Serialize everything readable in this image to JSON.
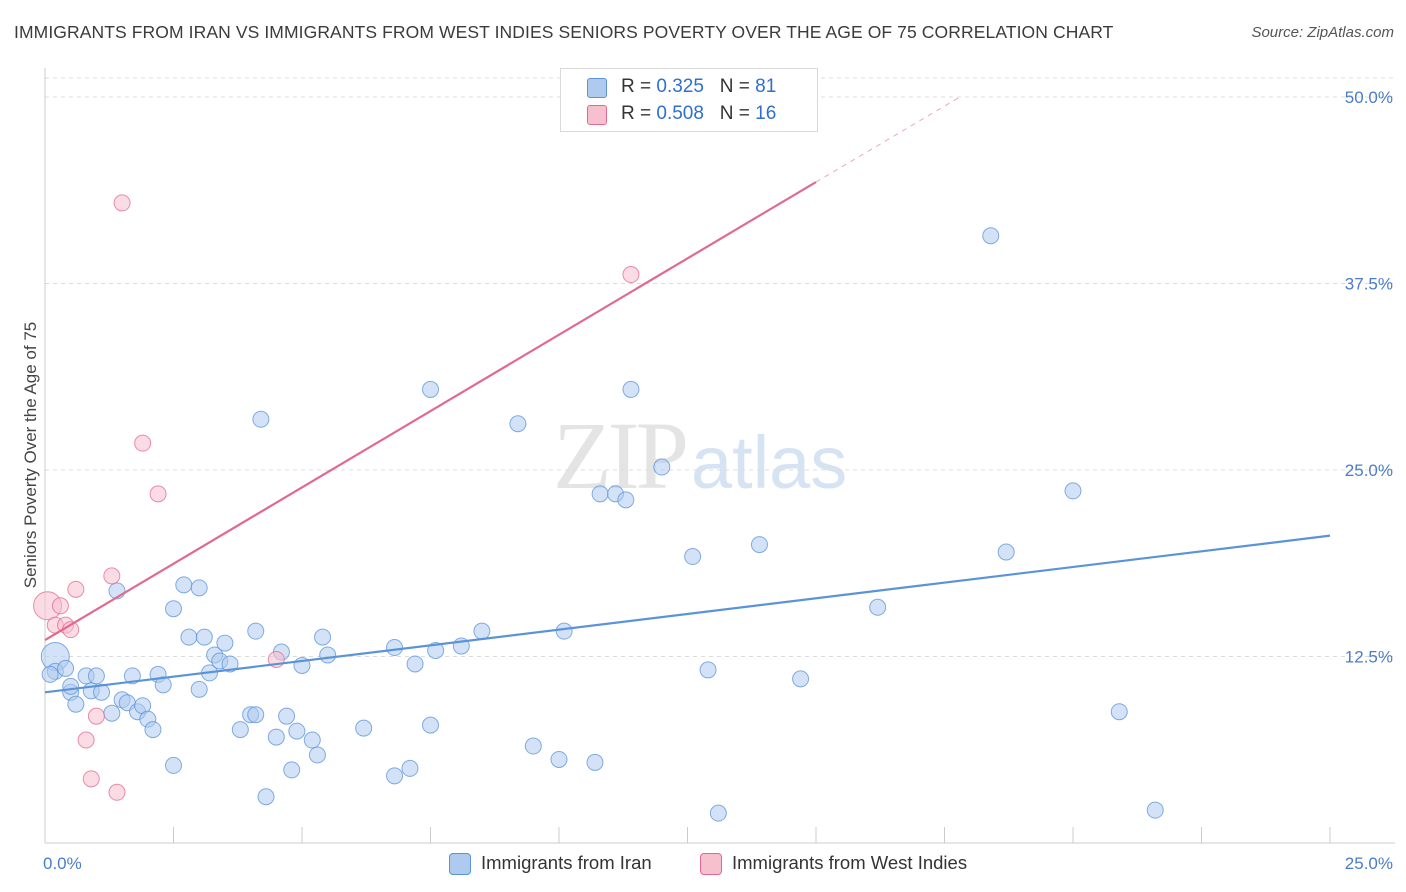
{
  "title": "IMMIGRANTS FROM IRAN VS IMMIGRANTS FROM WEST INDIES SENIORS POVERTY OVER THE AGE OF 75 CORRELATION CHART",
  "source": "Source: ZipAtlas.com",
  "watermark": {
    "zip": "ZIP",
    "atlas": "atlas"
  },
  "legend": {
    "rows": [
      {
        "r_label": "R =",
        "r_value": "0.325",
        "n_label": "N =",
        "n_value": "81",
        "color": "#aecbef"
      },
      {
        "r_label": "R =",
        "r_value": "0.508",
        "n_label": "N =",
        "n_value": "16",
        "color": "#f7c0cf"
      }
    ]
  },
  "bottom_legend": [
    {
      "label": "Immigrants from Iran",
      "color": "#aecbef"
    },
    {
      "label": "Immigrants from West Indies",
      "color": "#f7c0cf"
    }
  ],
  "chart_data": {
    "type": "scatter",
    "title": "IMMIGRANTS FROM IRAN VS IMMIGRANTS FROM WEST INDIES SENIORS POVERTY OVER THE AGE OF 75 CORRELATION CHART",
    "xlabel": "",
    "ylabel": "Seniors Poverty Over the Age of 75",
    "xlim": [
      0,
      25
    ],
    "ylim": [
      0,
      50
    ],
    "x_tick_labels": [
      "0.0%",
      "25.0%"
    ],
    "y_tick_values": [
      12.5,
      25.0,
      37.5,
      50.0
    ],
    "y_tick_labels": [
      "12.5%",
      "25.0%",
      "37.5%",
      "50.0%"
    ],
    "grid": true,
    "series": [
      {
        "name": "Immigrants from Iran",
        "color": "#5b93d9",
        "fill": "#aecbef",
        "trend": {
          "x0": 0,
          "y0": 10.1,
          "x1": 25,
          "y1": 20.6,
          "dashed_to": null
        },
        "points": [
          [
            0.2,
            12.5
          ],
          [
            0.2,
            11.5
          ],
          [
            0.4,
            11.7
          ],
          [
            0.5,
            10.1
          ],
          [
            0.5,
            10.5
          ],
          [
            0.6,
            9.3
          ],
          [
            0.8,
            11.2
          ],
          [
            0.9,
            10.2
          ],
          [
            1.0,
            11.2
          ],
          [
            1.1,
            10.1
          ],
          [
            1.3,
            8.7
          ],
          [
            1.4,
            16.9
          ],
          [
            1.5,
            9.6
          ],
          [
            1.6,
            9.4
          ],
          [
            1.7,
            11.2
          ],
          [
            1.8,
            8.8
          ],
          [
            1.9,
            9.2
          ],
          [
            2.0,
            8.3
          ],
          [
            2.1,
            7.6
          ],
          [
            2.2,
            11.3
          ],
          [
            2.3,
            10.6
          ],
          [
            2.5,
            15.7
          ],
          [
            2.5,
            5.2
          ],
          [
            2.7,
            17.3
          ],
          [
            2.8,
            13.8
          ],
          [
            3.0,
            17.1
          ],
          [
            3.0,
            10.3
          ],
          [
            3.1,
            13.8
          ],
          [
            3.2,
            11.4
          ],
          [
            3.3,
            12.6
          ],
          [
            3.4,
            12.2
          ],
          [
            3.5,
            13.4
          ],
          [
            3.6,
            12.0
          ],
          [
            3.8,
            7.6
          ],
          [
            4.0,
            8.6
          ],
          [
            4.1,
            14.2
          ],
          [
            4.1,
            8.6
          ],
          [
            4.2,
            28.4
          ],
          [
            4.3,
            3.1
          ],
          [
            4.5,
            7.1
          ],
          [
            4.6,
            12.8
          ],
          [
            4.7,
            8.5
          ],
          [
            4.8,
            4.9
          ],
          [
            4.9,
            7.5
          ],
          [
            5.0,
            11.9
          ],
          [
            5.2,
            6.9
          ],
          [
            5.3,
            5.9
          ],
          [
            5.4,
            13.8
          ],
          [
            5.5,
            12.6
          ],
          [
            6.2,
            7.7
          ],
          [
            6.8,
            4.5
          ],
          [
            6.8,
            13.1
          ],
          [
            7.1,
            5.0
          ],
          [
            7.2,
            12.0
          ],
          [
            7.5,
            7.9
          ],
          [
            7.6,
            12.9
          ],
          [
            7.5,
            30.4
          ],
          [
            8.1,
            13.2
          ],
          [
            8.5,
            14.2
          ],
          [
            9.2,
            28.1
          ],
          [
            9.5,
            6.5
          ],
          [
            10.0,
            5.6
          ],
          [
            10.1,
            14.2
          ],
          [
            10.7,
            5.4
          ],
          [
            10.8,
            23.4
          ],
          [
            11.1,
            23.4
          ],
          [
            11.3,
            23.0
          ],
          [
            11.4,
            30.4
          ],
          [
            12.0,
            25.2
          ],
          [
            12.6,
            19.2
          ],
          [
            12.9,
            11.6
          ],
          [
            13.1,
            2.0
          ],
          [
            13.9,
            20.0
          ],
          [
            14.7,
            11.0
          ],
          [
            16.2,
            15.8
          ],
          [
            18.4,
            40.7
          ],
          [
            18.7,
            19.5
          ],
          [
            20.0,
            23.6
          ],
          [
            20.9,
            8.8
          ],
          [
            21.6,
            2.2
          ],
          [
            0.1,
            11.3
          ]
        ]
      },
      {
        "name": "Immigrants from West Indies",
        "color": "#e06a8e",
        "fill": "#f7c0cf",
        "trend": {
          "x0": 0,
          "y0": 13.6,
          "x1": 15,
          "y1": 44.3,
          "dashed_to": {
            "x": 17.8,
            "y": 50
          }
        },
        "points": [
          [
            0.05,
            15.9
          ],
          [
            0.2,
            14.6
          ],
          [
            0.3,
            15.9
          ],
          [
            0.4,
            14.6
          ],
          [
            0.5,
            14.3
          ],
          [
            0.6,
            17.0
          ],
          [
            0.8,
            6.9
          ],
          [
            0.9,
            4.3
          ],
          [
            1.0,
            8.5
          ],
          [
            1.3,
            17.9
          ],
          [
            1.4,
            3.4
          ],
          [
            1.5,
            42.9
          ],
          [
            1.9,
            26.8
          ],
          [
            2.2,
            23.4
          ],
          [
            4.5,
            12.3
          ],
          [
            11.4,
            38.1
          ]
        ]
      }
    ]
  }
}
